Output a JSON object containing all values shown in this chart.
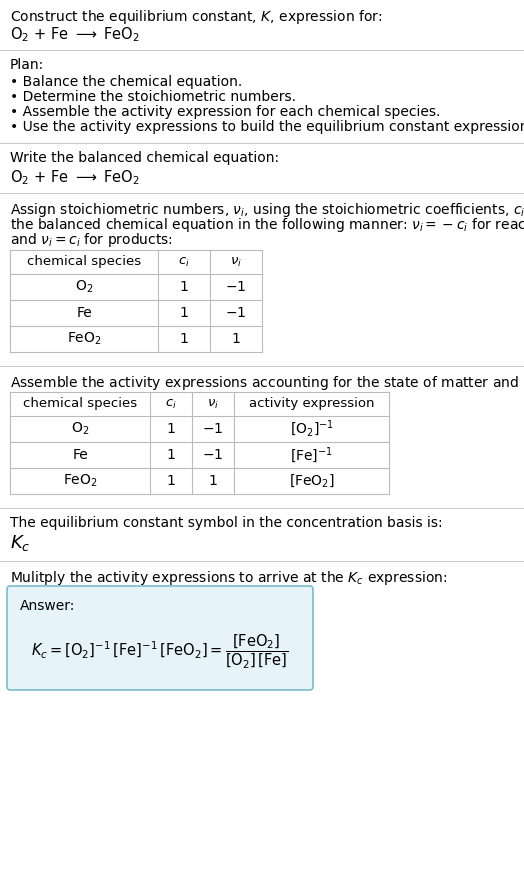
{
  "title_line1": "Construct the equilibrium constant, $K$, expression for:",
  "title_line2": "$\\mathrm{O_2}$ + Fe $\\longrightarrow$ $\\mathrm{FeO_2}$",
  "plan_header": "Plan:",
  "plan_items": [
    "• Balance the chemical equation.",
    "• Determine the stoichiometric numbers.",
    "• Assemble the activity expression for each chemical species.",
    "• Use the activity expressions to build the equilibrium constant expression."
  ],
  "section2_header": "Write the balanced chemical equation:",
  "section2_eq": "$\\mathrm{O_2}$ + Fe $\\longrightarrow$ $\\mathrm{FeO_2}$",
  "section3_header_parts": [
    "Assign stoichiometric numbers, $\\nu_i$, using the stoichiometric coefficients, $c_i$, from",
    "the balanced chemical equation in the following manner: $\\nu_i = -c_i$ for reactants",
    "and $\\nu_i = c_i$ for products:"
  ],
  "table1_headers": [
    "chemical species",
    "$c_i$",
    "$\\nu_i$"
  ],
  "table1_rows": [
    [
      "$\\mathrm{O_2}$",
      "1",
      "$-1$"
    ],
    [
      "Fe",
      "1",
      "$-1$"
    ],
    [
      "$\\mathrm{FeO_2}$",
      "1",
      "1"
    ]
  ],
  "section4_header": "Assemble the activity expressions accounting for the state of matter and $\\nu_i$:",
  "table2_headers": [
    "chemical species",
    "$c_i$",
    "$\\nu_i$",
    "activity expression"
  ],
  "table2_rows": [
    [
      "$\\mathrm{O_2}$",
      "1",
      "$-1$",
      "$[\\mathrm{O_2}]^{-1}$"
    ],
    [
      "Fe",
      "1",
      "$-1$",
      "$[\\mathrm{Fe}]^{-1}$"
    ],
    [
      "$\\mathrm{FeO_2}$",
      "1",
      "1",
      "$[\\mathrm{FeO_2}]$"
    ]
  ],
  "section5_header": "The equilibrium constant symbol in the concentration basis is:",
  "section5_symbol": "$K_c$",
  "section6_header": "Mulitply the activity expressions to arrive at the $K_c$ expression:",
  "answer_label": "Answer:",
  "bg_color": "#ffffff",
  "text_color": "#000000",
  "table_line_color": "#bbbbbb",
  "answer_box_facecolor": "#e6f3f8",
  "answer_box_edgecolor": "#7bbccc",
  "divider_color": "#cccccc",
  "fig_width": 5.24,
  "fig_height": 8.89,
  "dpi": 100
}
